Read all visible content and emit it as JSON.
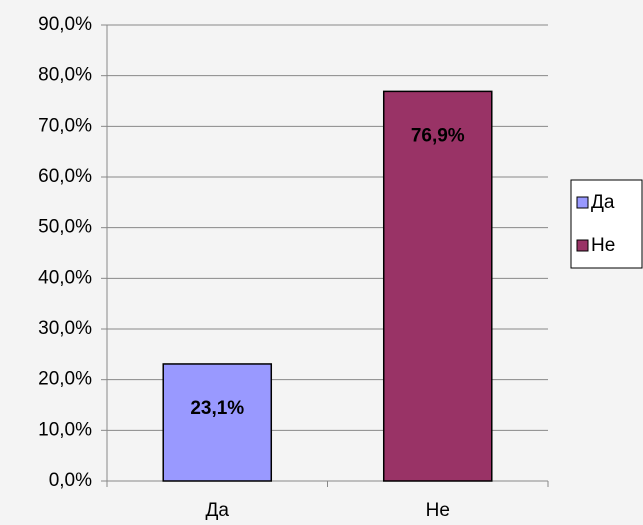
{
  "chart_data": {
    "type": "bar",
    "categories": [
      "Да",
      "Не"
    ],
    "values": [
      23.1,
      76.9
    ],
    "value_labels": [
      "23,1%",
      "76,9%"
    ],
    "colors": [
      "#9999ff",
      "#993366"
    ],
    "ylim": [
      0,
      90
    ],
    "yticks": [
      {
        "value": 0,
        "label": "0,0%"
      },
      {
        "value": 10,
        "label": "10,0%"
      },
      {
        "value": 20,
        "label": "20,0%"
      },
      {
        "value": 30,
        "label": "30,0%"
      },
      {
        "value": 40,
        "label": "40,0%"
      },
      {
        "value": 50,
        "label": "50,0%"
      },
      {
        "value": 60,
        "label": "60,0%"
      },
      {
        "value": 70,
        "label": "70,0%"
      },
      {
        "value": 80,
        "label": "80,0%"
      },
      {
        "value": 90,
        "label": "90,0%"
      }
    ],
    "grid": true,
    "legend": "right"
  }
}
